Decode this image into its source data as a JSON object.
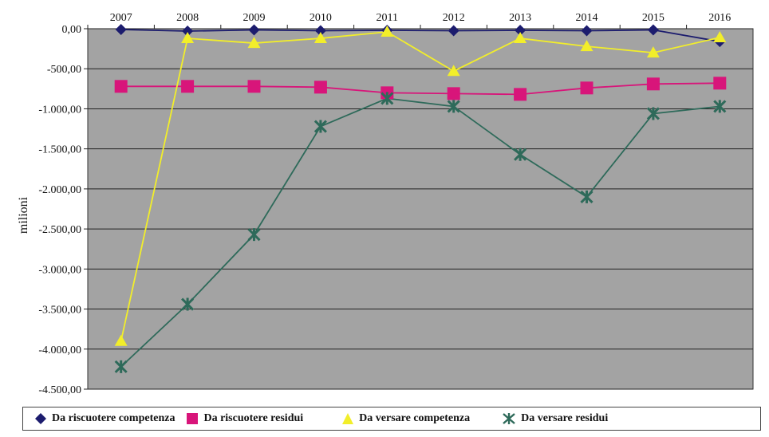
{
  "chart_data": {
    "type": "line",
    "categories": [
      "2007",
      "2008",
      "2009",
      "2010",
      "2011",
      "2012",
      "2013",
      "2014",
      "2015",
      "2016"
    ],
    "ylabel": "milioni",
    "ylim": [
      -4500,
      0
    ],
    "yticks": [
      "0,00",
      "-500,00",
      "-1.000,00",
      "-1.500,00",
      "-2.000,00",
      "-2.500,00",
      "-3.000,00",
      "-3.500,00",
      "-4.000,00",
      "-4.500,00"
    ],
    "ytick_values": [
      0,
      -500,
      -1000,
      -1500,
      -2000,
      -2500,
      -3000,
      -3500,
      -4000,
      -4500
    ],
    "grid": true,
    "legend_position": "bottom",
    "series": [
      {
        "name": "Da riscuotere competenza",
        "color": "#1c1c6e",
        "marker": "diamond",
        "values": [
          -10,
          -30,
          -15,
          -25,
          -20,
          -25,
          -20,
          -25,
          -15,
          -160
        ]
      },
      {
        "name": "Da riscuotere residui",
        "color": "#d8157a",
        "marker": "square",
        "values": [
          -720,
          -720,
          -720,
          -730,
          -800,
          -810,
          -820,
          -740,
          -690,
          -680
        ]
      },
      {
        "name": "Da versare competenza",
        "color": "#f2ee2a",
        "marker": "triangle",
        "values": [
          -3900,
          -120,
          -180,
          -120,
          -40,
          -530,
          -120,
          -220,
          -300,
          -110
        ]
      },
      {
        "name": "Da versare residui",
        "color": "#2e6a5a",
        "marker": "star",
        "values": [
          -4220,
          -3440,
          -2570,
          -1220,
          -870,
          -970,
          -1570,
          -2100,
          -1060,
          -970
        ]
      }
    ]
  }
}
